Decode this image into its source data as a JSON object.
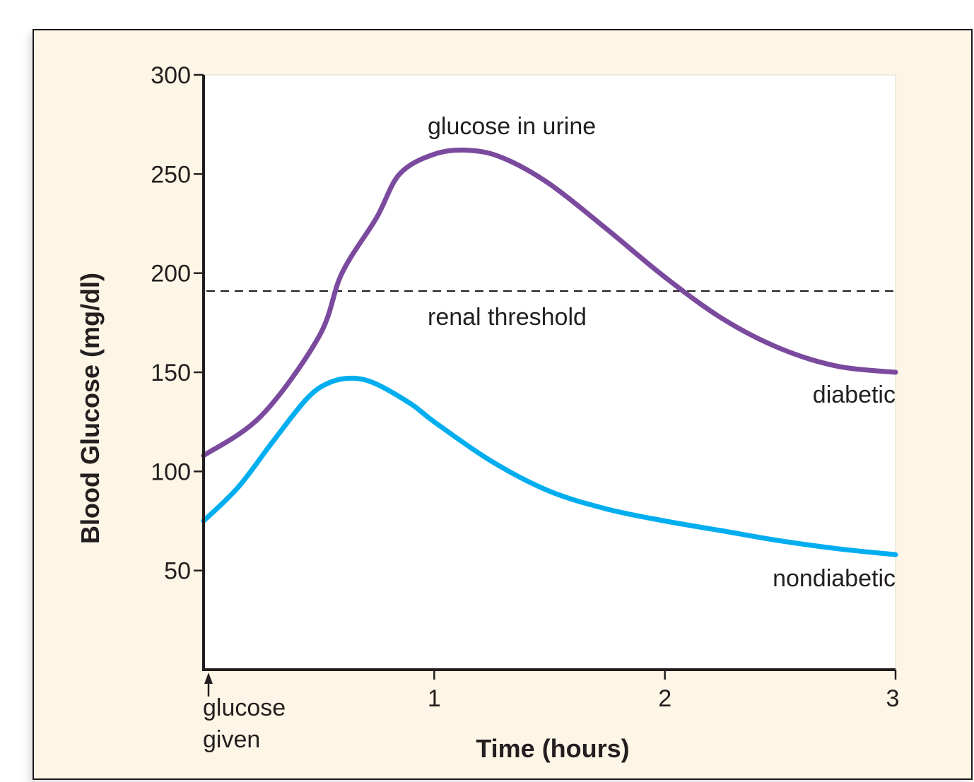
{
  "chart_data": {
    "type": "line",
    "title": "",
    "xlabel": "Time (hours)",
    "ylabel": "Blood Glucose (mg/dl)",
    "xlim": [
      0,
      3
    ],
    "ylim": [
      0,
      300
    ],
    "x_ticks": [
      "1",
      "2",
      "3"
    ],
    "y_ticks": [
      "50",
      "100",
      "150",
      "200",
      "250",
      "300"
    ],
    "x_tick_values": [
      1,
      2,
      3
    ],
    "y_tick_values": [
      50,
      100,
      150,
      200,
      250,
      300
    ],
    "grid": false,
    "series": [
      {
        "name": "diabetic",
        "color": "#7b4a9e",
        "x": [
          0,
          0.25,
          0.5,
          0.6,
          0.75,
          0.85,
          1.0,
          1.15,
          1.3,
          1.5,
          1.75,
          2.0,
          2.25,
          2.5,
          2.75,
          3.0
        ],
        "y": [
          108,
          128,
          168,
          200,
          228,
          250,
          260,
          262,
          258,
          245,
          222,
          198,
          177,
          162,
          153,
          150
        ]
      },
      {
        "name": "nondiabetic",
        "color": "#00aeef",
        "x": [
          0,
          0.15,
          0.3,
          0.45,
          0.55,
          0.65,
          0.75,
          0.9,
          1.0,
          1.25,
          1.5,
          1.75,
          2.0,
          2.25,
          2.5,
          2.75,
          3.0
        ],
        "y": [
          75,
          92,
          115,
          137,
          145,
          147,
          144,
          134,
          125,
          105,
          90,
          81,
          75,
          70,
          65,
          61,
          58
        ]
      }
    ],
    "reference_line": {
      "label": "renal threshold",
      "y": 191,
      "style": "dashed",
      "color": "#231f20"
    },
    "annotations": {
      "peak_label": "glucose in urine",
      "start_label_line1": "glucose",
      "start_label_line2": "given"
    }
  }
}
